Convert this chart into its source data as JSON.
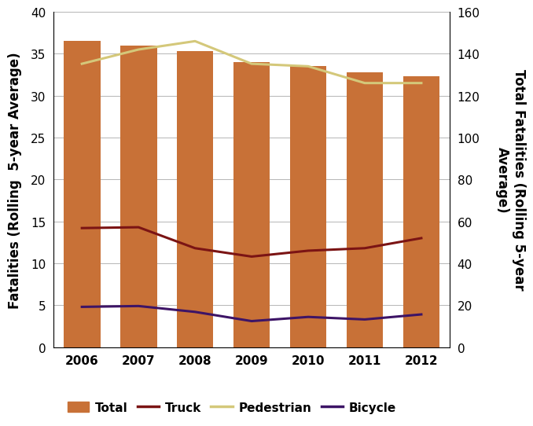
{
  "years": [
    2006,
    2007,
    2008,
    2009,
    2010,
    2011,
    2012
  ],
  "total_bars": [
    36.5,
    36.0,
    35.3,
    34.0,
    33.5,
    32.8,
    32.3
  ],
  "truck_line": [
    14.2,
    14.3,
    11.8,
    10.8,
    11.5,
    11.8,
    13.0
  ],
  "pedestrian_line": [
    33.8,
    35.5,
    36.5,
    33.8,
    33.5,
    31.5,
    31.5
  ],
  "bicycle_line": [
    4.8,
    4.9,
    4.2,
    3.1,
    3.6,
    3.3,
    3.9
  ],
  "bar_color": "#C87137",
  "truck_color": "#7B1414",
  "pedestrian_color": "#D4C87A",
  "bicycle_color": "#3D1466",
  "ylim_left": [
    0,
    40
  ],
  "ylim_right": [
    0,
    160
  ],
  "yticks_left": [
    0,
    5,
    10,
    15,
    20,
    25,
    30,
    35,
    40
  ],
  "yticks_right": [
    0,
    20,
    40,
    60,
    80,
    100,
    120,
    140,
    160
  ],
  "ylabel_left": "Fatalities (Rolling  5-year Average)",
  "ylabel_right": "Total Fatalities (Rolling 5-year\nAverage)",
  "legend_labels": [
    "Total",
    "Truck",
    "Pedestrian",
    "Bicycle"
  ],
  "bar_width": 0.65,
  "background_color": "#ffffff",
  "tick_labelsize": 11,
  "ylabel_fontsize": 12
}
